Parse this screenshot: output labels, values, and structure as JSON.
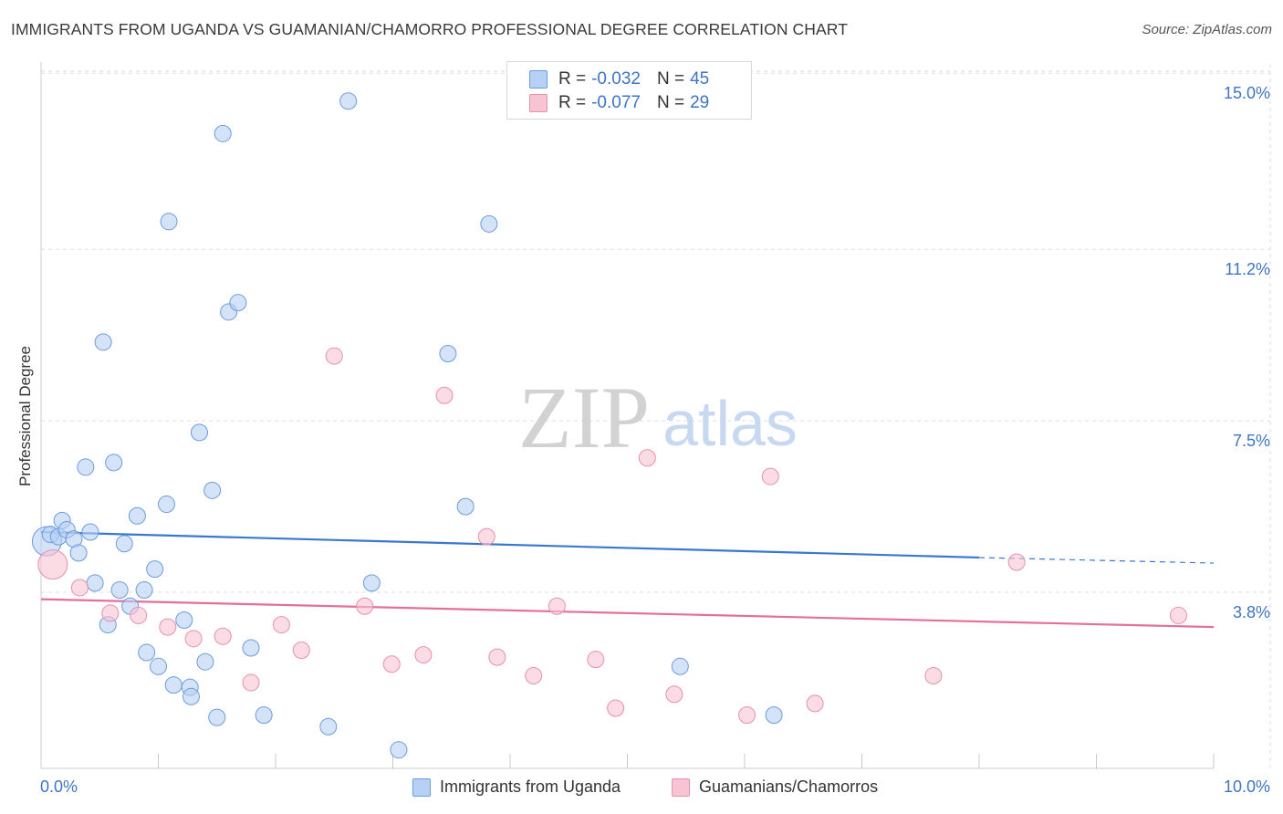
{
  "title": "IMMIGRANTS FROM UGANDA VS GUAMANIAN/CHAMORRO PROFESSIONAL DEGREE CORRELATION CHART",
  "source": "Source: ZipAtlas.com",
  "watermark": {
    "zip": "ZIP",
    "atlas": "atlas"
  },
  "colors": {
    "blue_fill": "#b7d0f3",
    "blue_stroke": "#6b9be0",
    "blue_line": "#3a78d0",
    "pink_fill": "#f8c4d4",
    "pink_stroke": "#e690ac",
    "pink_line": "#e46f9a",
    "tick_text": "#3d74c4",
    "grid": "#dddddd"
  },
  "stats": [
    {
      "r_label": "R =",
      "r_value": "-0.032",
      "n_label": "N =",
      "n_value": "45",
      "series": "blue"
    },
    {
      "r_label": "R =",
      "r_value": "-0.077",
      "n_label": "N =",
      "n_value": "29",
      "series": "pink"
    }
  ],
  "legend": [
    {
      "label": "Immigrants from Uganda",
      "series": "blue"
    },
    {
      "label": "Guamanians/Chamorros",
      "series": "pink"
    }
  ],
  "chart_data": {
    "type": "scatter",
    "xlabel": "",
    "ylabel": "Professional Degree",
    "xlim": [
      0,
      10
    ],
    "ylim": [
      0,
      15.4
    ],
    "x_tick_labels": [
      {
        "value": 0,
        "label": "0.0%"
      },
      {
        "value": 10,
        "label": "10.0%"
      }
    ],
    "y_tick_labels": [
      {
        "value": 3.8,
        "label": "3.8%"
      },
      {
        "value": 7.5,
        "label": "7.5%"
      },
      {
        "value": 11.2,
        "label": "11.2%"
      },
      {
        "value": 15.0,
        "label": "15.0%"
      }
    ],
    "x_minor_ticks": [
      1,
      2,
      3,
      4,
      5,
      6,
      7,
      8,
      9,
      10
    ],
    "grid": true,
    "series": [
      {
        "name": "Immigrants from Uganda",
        "color": "blue",
        "trend": {
          "x0": 0,
          "y0": 5.1,
          "x1": 8.0,
          "y1": 4.55,
          "dash_to_x": 10.0,
          "dash_to_y": 4.43
        },
        "points": [
          [
            0.05,
            4.9,
            16
          ],
          [
            0.08,
            5.05,
            9
          ],
          [
            0.15,
            5.0,
            9
          ],
          [
            0.18,
            5.35,
            9
          ],
          [
            0.22,
            5.15,
            9
          ],
          [
            0.28,
            4.95,
            9
          ],
          [
            0.32,
            4.65,
            9
          ],
          [
            0.38,
            6.5,
            9
          ],
          [
            0.42,
            5.1,
            9
          ],
          [
            0.46,
            4.0,
            9
          ],
          [
            0.53,
            9.2,
            9
          ],
          [
            0.57,
            3.1,
            9
          ],
          [
            0.62,
            6.6,
            9
          ],
          [
            0.67,
            3.85,
            9
          ],
          [
            0.71,
            4.85,
            9
          ],
          [
            0.76,
            3.5,
            9
          ],
          [
            0.82,
            5.45,
            9
          ],
          [
            0.88,
            3.85,
            9
          ],
          [
            0.9,
            2.5,
            9
          ],
          [
            0.97,
            4.3,
            9
          ],
          [
            1.0,
            2.2,
            9
          ],
          [
            1.07,
            5.7,
            9
          ],
          [
            1.09,
            11.8,
            9
          ],
          [
            1.13,
            1.8,
            9
          ],
          [
            1.22,
            3.2,
            9
          ],
          [
            1.27,
            1.75,
            9
          ],
          [
            1.28,
            1.55,
            9
          ],
          [
            1.35,
            7.25,
            9
          ],
          [
            1.4,
            2.3,
            9
          ],
          [
            1.46,
            6.0,
            9
          ],
          [
            1.5,
            1.1,
            9
          ],
          [
            1.55,
            13.7,
            9
          ],
          [
            1.6,
            9.85,
            9
          ],
          [
            1.68,
            10.05,
            9
          ],
          [
            1.79,
            2.6,
            9
          ],
          [
            1.9,
            1.15,
            9
          ],
          [
            2.45,
            0.9,
            9
          ],
          [
            2.62,
            14.4,
            9
          ],
          [
            2.82,
            4.0,
            9
          ],
          [
            3.05,
            0.4,
            9
          ],
          [
            3.47,
            8.95,
            9
          ],
          [
            3.62,
            5.65,
            9
          ],
          [
            3.82,
            11.75,
            9
          ],
          [
            5.45,
            2.2,
            9
          ],
          [
            6.25,
            1.15,
            9
          ]
        ]
      },
      {
        "name": "Guamanians/Chamorros",
        "color": "pink",
        "trend": {
          "x0": 0,
          "y0": 3.65,
          "x1": 10.0,
          "y1": 3.05
        },
        "points": [
          [
            0.1,
            4.4,
            16
          ],
          [
            0.33,
            3.9,
            9
          ],
          [
            0.59,
            3.35,
            9
          ],
          [
            0.83,
            3.3,
            9
          ],
          [
            1.08,
            3.05,
            9
          ],
          [
            1.3,
            2.8,
            9
          ],
          [
            1.55,
            2.85,
            9
          ],
          [
            1.79,
            1.85,
            9
          ],
          [
            2.05,
            3.1,
            9
          ],
          [
            2.22,
            2.55,
            9
          ],
          [
            2.5,
            8.9,
            9
          ],
          [
            2.76,
            3.5,
            9
          ],
          [
            2.99,
            2.25,
            9
          ],
          [
            3.26,
            2.45,
            9
          ],
          [
            3.44,
            8.05,
            9
          ],
          [
            3.8,
            5.0,
            9
          ],
          [
            3.89,
            2.4,
            9
          ],
          [
            4.2,
            2.0,
            9
          ],
          [
            4.4,
            3.5,
            9
          ],
          [
            4.73,
            2.35,
            9
          ],
          [
            4.9,
            1.3,
            9
          ],
          [
            5.17,
            6.7,
            9
          ],
          [
            5.4,
            1.6,
            9
          ],
          [
            6.02,
            1.15,
            9
          ],
          [
            6.22,
            6.3,
            9
          ],
          [
            6.6,
            1.4,
            9
          ],
          [
            7.61,
            2.0,
            9
          ],
          [
            8.32,
            4.45,
            9
          ],
          [
            9.7,
            3.3,
            9
          ]
        ]
      }
    ]
  }
}
